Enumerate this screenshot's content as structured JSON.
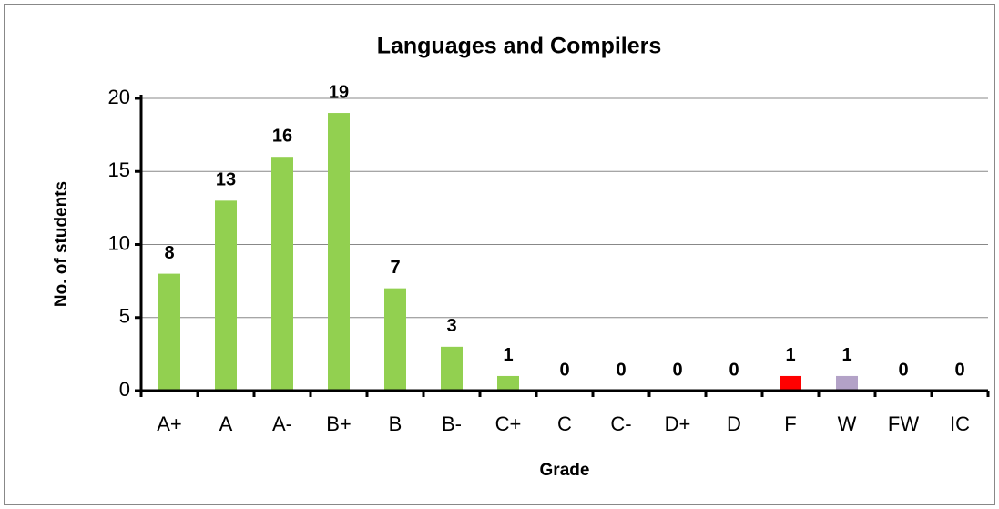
{
  "chart_data": {
    "type": "bar",
    "title": "Languages and Compilers",
    "x_label": "Grade",
    "y_label": "No. of students",
    "categories": [
      "A+",
      "A",
      "A-",
      "B+",
      "B",
      "B-",
      "C+",
      "C",
      "C-",
      "D+",
      "D",
      "F",
      "W",
      "FW",
      "IC"
    ],
    "values": [
      8,
      13,
      16,
      19,
      7,
      3,
      1,
      0,
      0,
      0,
      0,
      1,
      1,
      0,
      0
    ],
    "colors": [
      "#92d050",
      "#92d050",
      "#92d050",
      "#92d050",
      "#92d050",
      "#92d050",
      "#92d050",
      "#92d050",
      "#92d050",
      "#92d050",
      "#92d050",
      "#ff0000",
      "#b3a2c7",
      "#92d050",
      "#92d050"
    ],
    "ylim": [
      0,
      20
    ],
    "yticks": [
      0,
      5,
      10,
      15,
      20
    ],
    "grid": true
  }
}
